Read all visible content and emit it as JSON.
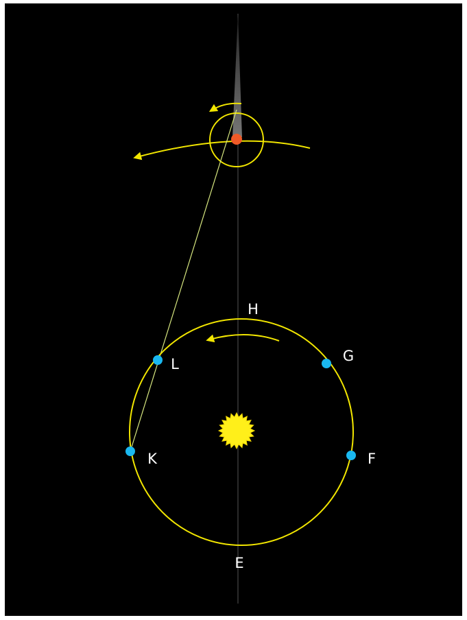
{
  "labels": [
    "H",
    "G",
    "F",
    "E",
    "K",
    "L"
  ]
}
